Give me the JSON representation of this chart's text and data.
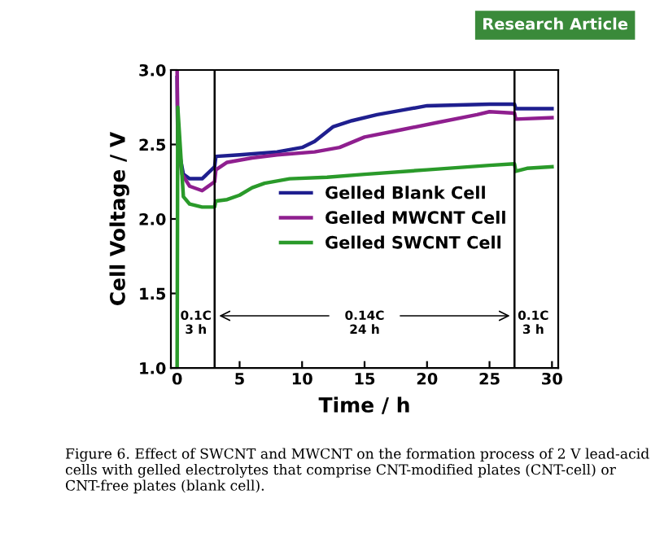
{
  "chart_data": {
    "type": "line",
    "xlabel": "Time / h",
    "ylabel": "Cell Voltage / V",
    "xlim": [
      -0.5,
      30.5
    ],
    "ylim": [
      1.0,
      3.0
    ],
    "xticks": [
      0,
      5,
      10,
      15,
      20,
      25,
      30
    ],
    "yticks": [
      {
        "value": 1.0,
        "label": "1.0"
      },
      {
        "value": 1.5,
        "label": "1.5"
      },
      {
        "value": 2.0,
        "label": "2.0"
      },
      {
        "value": 2.5,
        "label": "2.5"
      },
      {
        "value": 3.0,
        "label": "3.0"
      }
    ],
    "grid": false,
    "legend": "center",
    "line_style": "solid",
    "marker": "none",
    "series": [
      {
        "name": "Gelled Blank Cell",
        "color": "#1f1f8f",
        "x": [
          0,
          0.05,
          0.5,
          1,
          2,
          3,
          3.1,
          5,
          8,
          10,
          11,
          12.5,
          14,
          16,
          18,
          20,
          25,
          27,
          27.1,
          30
        ],
        "values": [
          2.95,
          2.5,
          2.3,
          2.27,
          2.27,
          2.35,
          2.42,
          2.43,
          2.45,
          2.48,
          2.52,
          2.62,
          2.66,
          2.7,
          2.73,
          2.76,
          2.77,
          2.77,
          2.74,
          2.74
        ]
      },
      {
        "name": "Gelled MWCNT Cell",
        "color": "#8f1f8f",
        "x": [
          0,
          0.05,
          0.4,
          1,
          2,
          3,
          3.1,
          4,
          6,
          8,
          11,
          13,
          15,
          18,
          21,
          24,
          25,
          27,
          27.1,
          30
        ],
        "values": [
          3.0,
          2.5,
          2.3,
          2.22,
          2.19,
          2.25,
          2.33,
          2.38,
          2.41,
          2.43,
          2.45,
          2.48,
          2.55,
          2.6,
          2.65,
          2.7,
          2.72,
          2.71,
          2.67,
          2.68
        ]
      },
      {
        "name": "Gelled SWCNT Cell",
        "color": "#2a9a2a",
        "x": [
          0,
          0.05,
          0.5,
          1,
          2,
          3,
          3.1,
          4,
          5,
          6,
          7,
          9,
          12,
          15,
          20,
          25,
          27,
          27.1,
          28,
          30
        ],
        "values": [
          1.0,
          2.75,
          2.15,
          2.1,
          2.08,
          2.08,
          2.12,
          2.13,
          2.16,
          2.21,
          2.24,
          2.27,
          2.28,
          2.3,
          2.33,
          2.36,
          2.37,
          2.32,
          2.34,
          2.35
        ]
      }
    ],
    "ref_lines": [
      {
        "axis": "x",
        "value": 3,
        "color": "#000000"
      },
      {
        "axis": "x",
        "value": 27,
        "color": "#000000"
      }
    ],
    "annotations": [
      {
        "text": "0.1C\n3 h",
        "x": 1.5,
        "y": 1.3
      },
      {
        "text": "0.14C\n24 h",
        "x": 15,
        "y": 1.3
      },
      {
        "text": "0.1C\n3 h",
        "x": 28.5,
        "y": 1.3
      },
      "Research Article",
      "Figure 6. Effect of SWCNT and MWCNT on the formation process of 2 V lead-acid cells with gelled electrolytes that comprise CNT-modified plates (CNT-cell) or CNT-free plates (blank cell)."
    ]
  }
}
